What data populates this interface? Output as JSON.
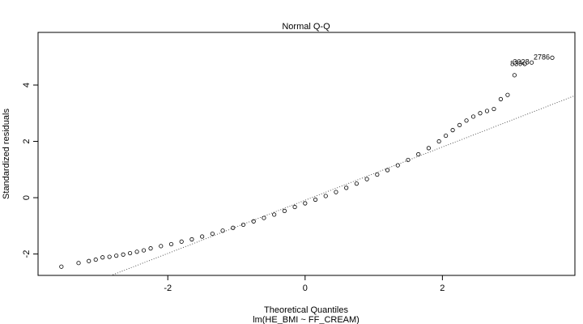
{
  "chart_data": {
    "type": "scatter",
    "title": "Normal Q-Q",
    "x_label": "Theoretical Quantiles",
    "caption": "lm(HE_BMI ~ FF_CREAM)",
    "y_label": "Standardized residuals",
    "x": [
      -3.55,
      -3.3,
      -3.15,
      -3.05,
      -2.95,
      -2.85,
      -2.75,
      -2.65,
      -2.55,
      -2.45,
      -2.35,
      -2.25,
      -2.1,
      -1.95,
      -1.8,
      -1.65,
      -1.5,
      -1.35,
      -1.2,
      -1.05,
      -0.9,
      -0.75,
      -0.6,
      -0.45,
      -0.3,
      -0.15,
      0,
      0.15,
      0.3,
      0.45,
      0.6,
      0.75,
      0.9,
      1.05,
      1.2,
      1.35,
      1.5,
      1.65,
      1.8,
      1.95,
      2.05,
      2.15,
      2.25,
      2.35,
      2.45,
      2.55,
      2.65,
      2.75,
      2.85,
      2.95,
      3.05,
      3.2,
      3.3,
      3.6
    ],
    "values": [
      -2.45,
      -2.32,
      -2.25,
      -2.2,
      -2.12,
      -2.1,
      -2.06,
      -2.02,
      -1.97,
      -1.92,
      -1.87,
      -1.8,
      -1.72,
      -1.65,
      -1.56,
      -1.48,
      -1.38,
      -1.28,
      -1.17,
      -1.07,
      -0.96,
      -0.84,
      -0.72,
      -0.6,
      -0.47,
      -0.33,
      -0.2,
      -0.07,
      0.06,
      0.2,
      0.35,
      0.5,
      0.66,
      0.82,
      0.98,
      1.15,
      1.34,
      1.54,
      1.76,
      2.0,
      2.2,
      2.4,
      2.58,
      2.74,
      2.88,
      3.0,
      3.08,
      3.15,
      3.5,
      3.65,
      4.35,
      4.75,
      4.8,
      4.97
    ],
    "color": "#000000",
    "reference_line": {
      "intercept": -0.09,
      "slope": 0.945
    },
    "point_labels": [
      {
        "text": "2786",
        "point": 53
      },
      {
        "text": "839",
        "point": 51
      },
      {
        "text": "3028",
        "point": 52
      }
    ],
    "xlim": [
      -3.89,
      3.93
    ],
    "ylim": [
      -2.76,
      5.87
    ],
    "xticks": [
      -2,
      0,
      2
    ],
    "yticks": [
      -2,
      0,
      2,
      4
    ]
  }
}
